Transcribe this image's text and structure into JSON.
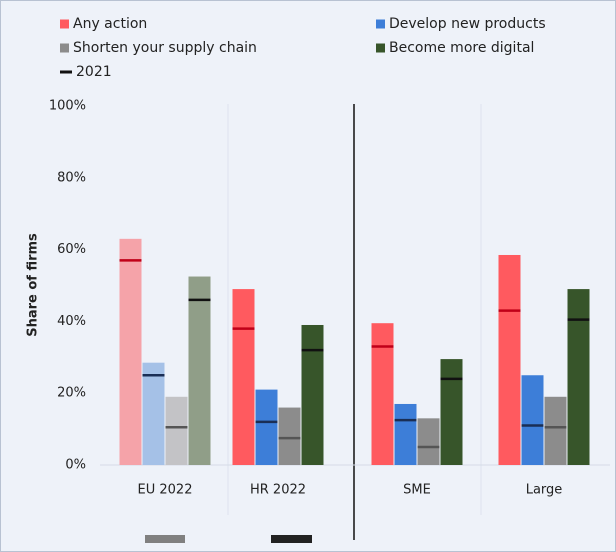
{
  "chart_data": {
    "type": "bar",
    "y_label": "Share of firms",
    "categories": [
      "EU 2022",
      "HR 2022",
      "SME",
      "Large"
    ],
    "ylim": [
      0,
      100
    ],
    "yticks": [
      {
        "value": 0,
        "label": "0%"
      },
      {
        "value": 20,
        "label": "20%"
      },
      {
        "value": 40,
        "label": "40%"
      },
      {
        "value": 60,
        "label": "60%"
      },
      {
        "value": 80,
        "label": "80%"
      },
      {
        "value": 100,
        "label": "100%"
      }
    ],
    "marker_name": "2021",
    "marker_legend_color": "#111111",
    "series": [
      {
        "name": "Any action",
        "color": "#ff5a5f",
        "colors": [
          "#f5a3a9",
          "#ff5a5f",
          "#ff5a5f",
          "#ff5a5f"
        ],
        "marker_color": "#c00018",
        "values": [
          63,
          49,
          39.5,
          58.5
        ],
        "values_2021": [
          57,
          38,
          33,
          43
        ]
      },
      {
        "name": "Develop new products",
        "color": "#3d7ed8",
        "colors": [
          "#a5c1e7",
          "#3d7ed8",
          "#3d7ed8",
          "#3d7ed8"
        ],
        "marker_color": "#1a2e55",
        "values": [
          28.5,
          21,
          17,
          25
        ],
        "values_2021": [
          25,
          12,
          12.5,
          11
        ]
      },
      {
        "name": "Shorten your supply chain",
        "color": "#8c8c8c",
        "colors": [
          "#c3c3c6",
          "#8c8c8c",
          "#8c8c8c",
          "#8c8c8c"
        ],
        "marker_color": "#555555",
        "values": [
          19,
          16,
          13,
          19
        ],
        "values_2021": [
          10.5,
          7.5,
          5,
          10.5
        ]
      },
      {
        "name": "Become more digital",
        "color": "#37552a",
        "colors": [
          "#909e88",
          "#37552a",
          "#37552a",
          "#37552a"
        ],
        "marker_color": "#111111",
        "values": [
          52.5,
          39,
          29.5,
          49
        ],
        "values_2021": [
          46,
          32,
          24,
          40.5
        ]
      }
    ]
  }
}
